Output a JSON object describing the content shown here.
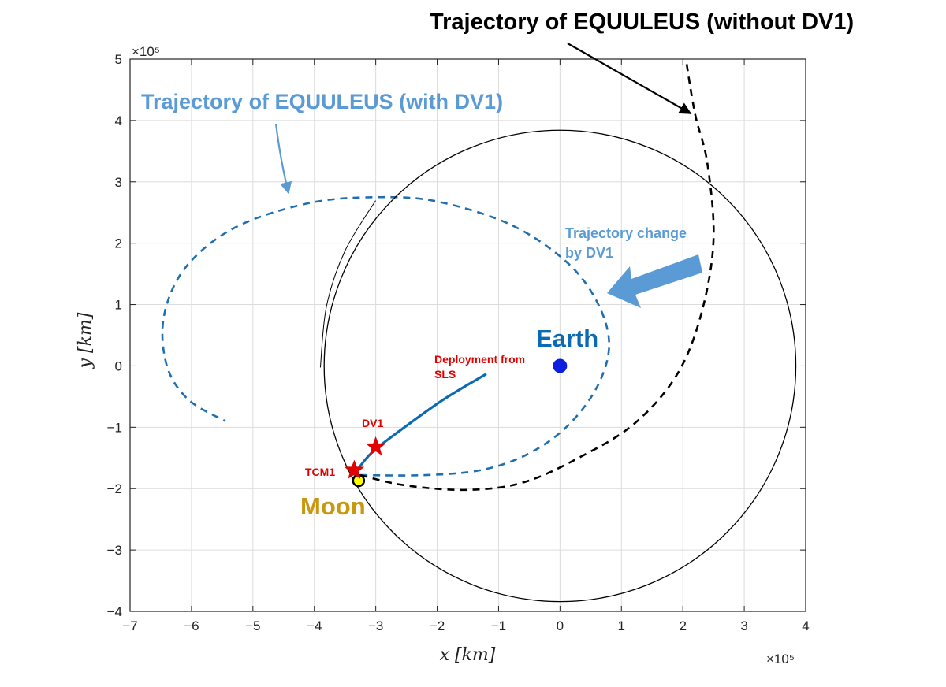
{
  "chart_data": {
    "type": "line",
    "xlabel": "x [km]",
    "ylabel": "y [km]",
    "x_exponent": "×10⁵",
    "y_exponent": "×10⁵",
    "xlim": [
      -7,
      4
    ],
    "ylim": [
      -4,
      5
    ],
    "x_ticks": [
      -7,
      -6,
      -5,
      -4,
      -3,
      -2,
      -1,
      0,
      1,
      2,
      3,
      4
    ],
    "y_ticks": [
      -4,
      -3,
      -2,
      -1,
      0,
      1,
      2,
      3,
      4,
      5
    ],
    "x_tick_labels": [
      "−7",
      "−6",
      "−5",
      "−4",
      "−3",
      "−2",
      "−1",
      "0",
      "1",
      "2",
      "3",
      "4"
    ],
    "y_tick_labels": [
      "−4",
      "−3",
      "−2",
      "−1",
      "0",
      "1",
      "2",
      "3",
      "4",
      "5"
    ],
    "grid": true,
    "series": [
      {
        "name": "Trajectory of EQUULEUS (with DV1)",
        "style": "dashed",
        "color": "#1f6fb0",
        "points": [
          [
            -3.25,
            -1.78
          ],
          [
            -2.2,
            -1.78
          ],
          [
            -1.3,
            -1.7
          ],
          [
            -0.55,
            -1.45
          ],
          [
            0.1,
            -1.0
          ],
          [
            0.6,
            -0.35
          ],
          [
            0.8,
            0.35
          ],
          [
            0.6,
            1.05
          ],
          [
            0.1,
            1.7
          ],
          [
            -0.8,
            2.3
          ],
          [
            -2.0,
            2.68
          ],
          [
            -3.0,
            2.75
          ],
          [
            -4.1,
            2.65
          ],
          [
            -5.3,
            2.25
          ],
          [
            -6.1,
            1.6
          ],
          [
            -6.45,
            0.8
          ],
          [
            -6.4,
            0.0
          ],
          [
            -6.05,
            -0.55
          ],
          [
            -5.45,
            -0.9
          ]
        ]
      },
      {
        "name": "Trajectory of EQUULEUS (without DV1)",
        "style": "dashed",
        "color": "#000000",
        "points": [
          [
            -3.25,
            -1.78
          ],
          [
            -2.5,
            -1.95
          ],
          [
            -1.5,
            -2.02
          ],
          [
            -0.6,
            -1.9
          ],
          [
            0.3,
            -1.5
          ],
          [
            1.2,
            -0.95
          ],
          [
            1.9,
            -0.15
          ],
          [
            2.3,
            0.85
          ],
          [
            2.5,
            2.05
          ],
          [
            2.4,
            3.3
          ],
          [
            2.2,
            4.1
          ],
          [
            2.05,
            5.0
          ]
        ]
      },
      {
        "name": "Deployment from SLS",
        "style": "solid",
        "color": "#0a6ab3",
        "points": [
          [
            -1.2,
            -0.13
          ],
          [
            -1.9,
            -0.55
          ],
          [
            -2.6,
            -1.05
          ],
          [
            -3.05,
            -1.4
          ],
          [
            -3.3,
            -1.7
          ],
          [
            -3.35,
            -1.85
          ]
        ]
      },
      {
        "name": "Moon orbit",
        "style": "solid",
        "color": "#000000",
        "circle": {
          "center": [
            0,
            0
          ],
          "radius": 3.84
        }
      }
    ],
    "points": [
      {
        "name": "Earth",
        "x": 0,
        "y": 0,
        "color": "#0a1fe0"
      },
      {
        "name": "Moon",
        "x": -3.28,
        "y": -1.87,
        "color": "#ffff00"
      },
      {
        "name": "DV1",
        "x": -3.0,
        "y": -1.32,
        "color": "#e00000"
      },
      {
        "name": "TCM1",
        "x": -3.35,
        "y": -1.7,
        "color": "#e00000"
      }
    ]
  },
  "annotations": {
    "without_dv1": "Trajectory of EQUULEUS (without DV1)",
    "with_dv1": "Trajectory of EQUULEUS (with DV1)",
    "change_line1": "Trajectory change",
    "change_line2": "by DV1",
    "deploy_line1": "Deployment from",
    "deploy_line2": "SLS",
    "dv1": "DV1",
    "tcm1": "TCM1",
    "earth": "Earth",
    "moon": "Moon"
  }
}
